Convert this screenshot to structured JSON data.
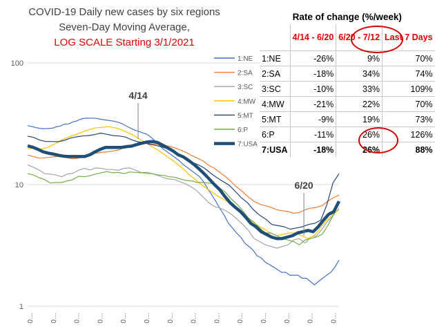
{
  "chart_data": {
    "type": "line",
    "title": "COVID-19 Daily new cases by six regions",
    "subtitle": "Seven-Day Moving Average,",
    "subtitle2": "LOG SCALE Starting 3/1/2021",
    "y_scale": "log",
    "ylim": [
      1,
      100
    ],
    "y_ticks": [
      "100",
      "10",
      "1"
    ],
    "x_tick_label": "0…",
    "x_tick_count": 14,
    "grid": "horizontal",
    "legend_position": "middle-right",
    "annotations": [
      {
        "text": "4/14",
        "x_index": 44,
        "y": 22.5
      },
      {
        "text": "6/20",
        "x_index": 110,
        "y": 3.6
      }
    ],
    "series": [
      {
        "name": "1:NE",
        "color": "#4472c4",
        "values": [
          30.5,
          30,
          29.4,
          29,
          28.8,
          28.9,
          29.1,
          29.8,
          30.3,
          31.4,
          31.5,
          32.7,
          33.3,
          34.6,
          35.1,
          35.1,
          35.2,
          34.9,
          34.4,
          34,
          33.6,
          33.2,
          32.6,
          31.7,
          30.4,
          29.2,
          28.2,
          27.4,
          26.7,
          26,
          24.7,
          23,
          21.3,
          19.7,
          18.7,
          17.6,
          16.7,
          15.7,
          14.6,
          13.8,
          13,
          12.3,
          11.6,
          10.5,
          9.2,
          8.2,
          7.2,
          6.3,
          5.6,
          4.8,
          4.4,
          4,
          3.7,
          3.3,
          3.1,
          2.9,
          2.6,
          2.5,
          2.3,
          2.2,
          2.1,
          2,
          1.9,
          1.9,
          1.8,
          1.8,
          1.8,
          1.7,
          1.7,
          1.6,
          1.5,
          1.6,
          1.7,
          1.8,
          1.9,
          2.1,
          2.4
        ]
      },
      {
        "name": "2:SA",
        "color": "#ed7d31",
        "values": [
          17.5,
          17,
          16.5,
          16.6,
          16.8,
          17,
          16.9,
          16.6,
          16.3,
          16.5,
          17,
          17.6,
          18.1,
          18.4,
          18.6,
          18.8,
          19.2,
          20,
          21,
          21.5,
          21.8,
          21.8,
          21.6,
          21.3,
          21,
          20.7,
          20,
          19.2,
          18.4,
          17.3,
          16.5,
          15.6,
          14.4,
          13.6,
          12.5,
          11.6,
          10.5,
          9.5,
          8.7,
          7.9,
          7.3,
          6.9,
          6.7,
          6.5,
          6.2,
          6.1,
          6,
          5.8,
          5.9,
          6.2,
          6.4,
          6.5,
          6.7,
          7.3,
          7.8,
          8.2
        ]
      },
      {
        "name": "3:SC",
        "color": "#a5a5a5",
        "values": [
          14.5,
          13.9,
          13.2,
          12.3,
          12.2,
          12,
          11.6,
          12.2,
          12.4,
          13.1,
          13.6,
          13.2,
          13.7,
          13.6,
          13.3,
          13.3,
          13.1,
          13.6,
          13.7,
          13.2,
          12.6,
          12.3,
          12.3,
          11.9,
          11.4,
          11.1,
          11,
          10.5,
          10.1,
          9.5,
          8.8,
          7.9,
          7.1,
          6.6,
          6.4,
          6.1,
          5.7,
          5.2,
          4.7,
          4.2,
          3.6,
          3.4,
          3.2,
          3.1,
          3,
          3.1,
          3.2,
          3.5,
          3.6,
          3.3,
          3.7,
          3.8,
          4.3,
          5,
          5.6,
          6.4
        ]
      },
      {
        "name": "4:MW",
        "color": "#ffc000",
        "values": [
          19.7,
          19.8,
          19.5,
          20,
          21.1,
          22.5,
          24,
          25,
          26.1,
          27.3,
          28.4,
          29.3,
          29.6,
          29.9,
          29.3,
          28.3,
          26.9,
          25.4,
          23.6,
          22,
          20.5,
          19.1,
          17.6,
          16.2,
          14.8,
          13.4,
          12,
          10.9,
          9.9,
          9.1,
          8.4,
          7.8,
          7.3,
          6.8,
          6.3,
          5.6,
          5,
          4.6,
          4.3,
          4,
          3.8,
          3.9,
          4,
          4,
          3.8,
          3.6,
          3.8,
          4.4,
          5.1,
          5.7,
          6.2
        ]
      },
      {
        "name": "5:MT",
        "color": "#264478",
        "values": [
          25,
          24.4,
          23.2,
          22.6,
          22.6,
          22.5,
          23.1,
          24.1,
          24.7,
          25.1,
          25.3,
          25.8,
          26.5,
          25.9,
          25.3,
          25.1,
          24.6,
          23.4,
          22.5,
          22.1,
          21.4,
          21,
          20.4,
          19.6,
          18.7,
          17.5,
          16.5,
          15.2,
          14.5,
          13.6,
          12.4,
          11.4,
          10.6,
          9.9,
          8.8,
          7.8,
          7.1,
          6.2,
          5.6,
          5.2,
          4.7,
          4.6,
          4.5,
          4.3,
          4.4,
          4.5,
          4.7,
          4.8,
          5.1,
          6.8,
          10.3,
          12.3
        ]
      },
      {
        "name": "6:P",
        "color": "#70ad47",
        "values": [
          12.3,
          12,
          11.4,
          11,
          10.3,
          10.4,
          10.4,
          10.7,
          11,
          11.7,
          11.6,
          11.8,
          12.2,
          12.5,
          12.8,
          12.5,
          12.6,
          12.3,
          12.7,
          12.6,
          12.5,
          12.6,
          12.3,
          12,
          11.9,
          11.6,
          11.5,
          11.1,
          10.8,
          10.7,
          10.4,
          10.4,
          10.3,
          10.1,
          9.3,
          8.6,
          7.6,
          6.9,
          6.1,
          5.3,
          4.9,
          4.4,
          4,
          4,
          3.8,
          3.6,
          3.5,
          3.4,
          3.2,
          3.5,
          3.6,
          3.7,
          3.9,
          4.6,
          5.6,
          7.1
        ]
      },
      {
        "name": "7:USA",
        "color": "#1f4e79",
        "values": [
          20.8,
          20.3,
          19.5,
          18.6,
          18.1,
          17.8,
          17.4,
          17.1,
          17,
          17,
          17,
          17,
          17.6,
          18.6,
          19.5,
          20.2,
          20.2,
          20.2,
          20.2,
          20.5,
          20.7,
          21.3,
          21.9,
          22.4,
          22.6,
          22.2,
          21.1,
          20,
          18.9,
          17.6,
          16.9,
          15.8,
          14.7,
          13.5,
          12.3,
          11.1,
          10,
          9.1,
          8,
          7.1,
          6.5,
          6,
          5.4,
          4.8,
          4.5,
          4.1,
          3.9,
          3.7,
          3.6,
          3.6,
          3.7,
          3.8,
          4,
          4.1,
          4.2,
          4.1,
          4.5,
          5.1,
          5.7,
          6,
          7.3
        ]
      }
    ],
    "table": {
      "title": "Rate of change (%/week)",
      "columns": [
        "4/14 - 6/20",
        "6/20 - 7/12",
        "Last 7 Days"
      ],
      "rows": [
        {
          "label": "1:NE",
          "values": [
            "-26%",
            "9%",
            "70%"
          ]
        },
        {
          "label": "2:SA",
          "values": [
            "-18%",
            "34%",
            "74%"
          ]
        },
        {
          "label": "3:SC",
          "values": [
            "-10%",
            "33%",
            "109%"
          ]
        },
        {
          "label": "4:MW",
          "values": [
            "-21%",
            "22%",
            "70%"
          ]
        },
        {
          "label": "5:MT",
          "values": [
            "-9%",
            "19%",
            "73%"
          ]
        },
        {
          "label": "6:P",
          "values": [
            "-11%",
            "26%",
            "126%"
          ]
        },
        {
          "label": "7:USA",
          "values": [
            "-18%",
            "26%",
            "88%"
          ]
        }
      ]
    }
  }
}
